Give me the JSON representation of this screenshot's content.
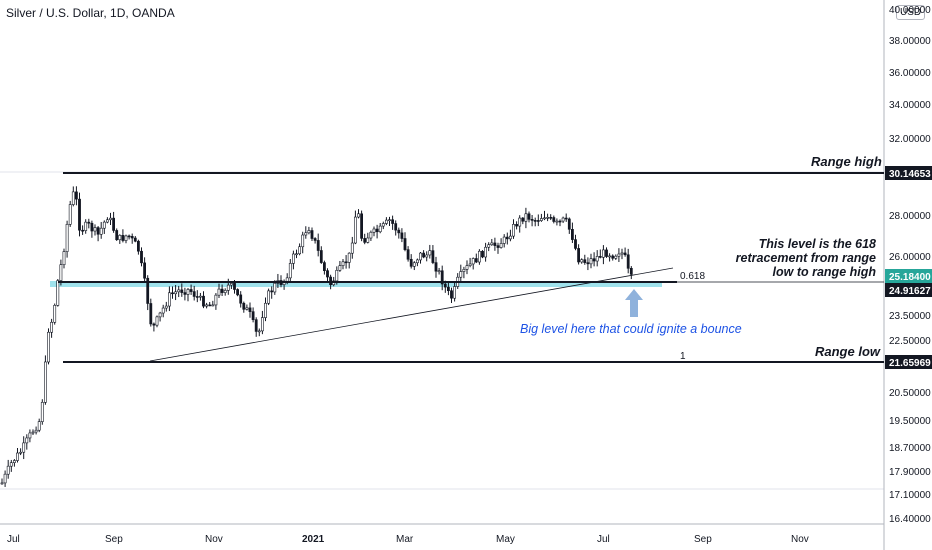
{
  "chart_data": {
    "type": "candlestick",
    "title": "Silver / U.S. Dollar, 1D, OANDA",
    "currency_badge": "USD",
    "x_ticks": [
      "Jul",
      "Sep",
      "Nov",
      "2021",
      "Mar",
      "May",
      "Jul",
      "Sep",
      "Nov"
    ],
    "y_ticks": [
      "40.00000",
      "38.00000",
      "36.00000",
      "34.00000",
      "32.00000",
      "28.00000",
      "26.00000",
      "23.50000",
      "22.50000",
      "20.50000",
      "19.50000",
      "18.70000",
      "17.90000",
      "17.10000",
      "16.40000"
    ],
    "ylim": [
      16.4,
      40.0
    ],
    "price_labels": [
      {
        "value": "30.14653",
        "price": 30.14653,
        "style": "black"
      },
      {
        "value": "25.18400",
        "price": 25.184,
        "style": "green"
      },
      {
        "value": "24.91627",
        "price": 24.91627,
        "style": "black"
      },
      {
        "value": "21.65969",
        "price": 21.65969,
        "style": "black"
      }
    ],
    "levels": {
      "range_high": 30.14653,
      "fib_0618": 24.91627,
      "range_low": 21.65969
    },
    "fib_labels": {
      "level_0618": "0.618",
      "level_1": "1"
    },
    "annotations": {
      "range_high": "Range high",
      "range_low": "Range low",
      "retracement_lines": [
        "This level is the 618",
        "retracement from range",
        "low to range high"
      ],
      "bounce": "Big level here that could ignite a bounce"
    },
    "colors": {
      "up": "#26a69a",
      "down": "#ef5350",
      "candle": "#131722",
      "last_price": "#26a69a",
      "highlight_band": "#7fd8e6",
      "annotation_blue": "#1e53e5",
      "arrow": "#8fb2dc"
    }
  }
}
